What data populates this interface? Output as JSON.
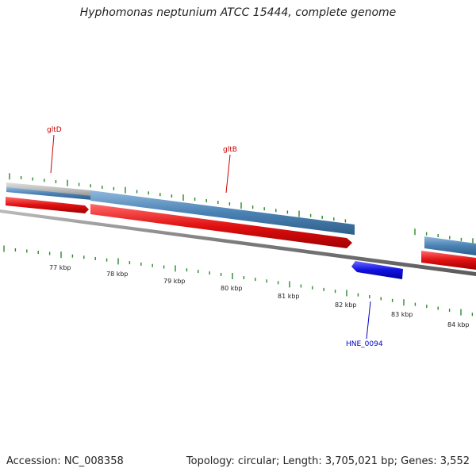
{
  "title": "Hyphomonas neptunium ATCC 15444, complete genome",
  "footer": {
    "accession": "Accession: NC_008358",
    "summary": "Topology: circular; Length: 3,705,021 bp; Genes: 3,552"
  },
  "scale_labels": [
    "77 kbp",
    "78 kbp",
    "79 kbp",
    "80 kbp",
    "81 kbp",
    "82 kbp",
    "83 kbp",
    "84 kbp"
  ],
  "genes": [
    {
      "name": "gltD",
      "color": "#cc0000"
    },
    {
      "name": "gltB",
      "color": "#cc0000"
    },
    {
      "name": "HNE_0094",
      "color": "#0000cc"
    }
  ],
  "colors": {
    "cds_forward": "#4a82b4",
    "cds_reverse": "#e01010",
    "cds_minus_small": "#1010e0",
    "backbone": "#808080",
    "ticks": "#2a8a2a"
  }
}
